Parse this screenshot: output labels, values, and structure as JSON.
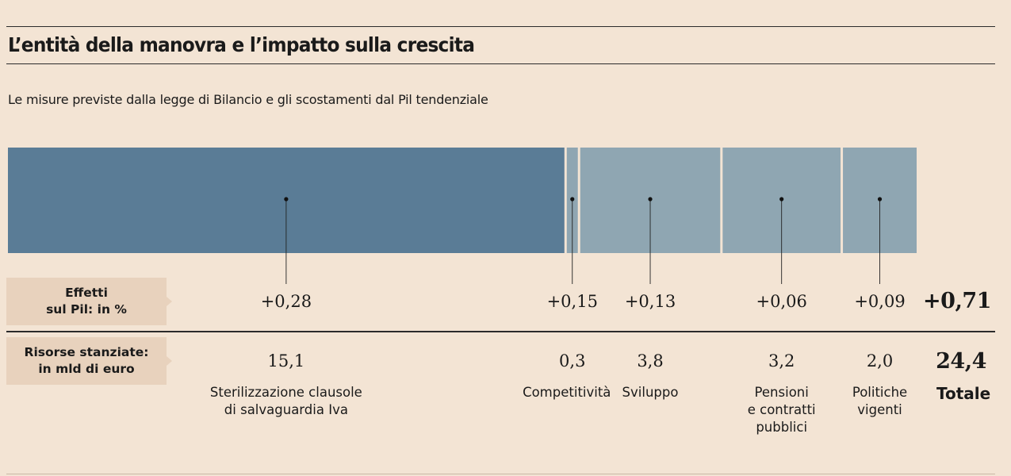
{
  "title": "L’entità della manovra e l’impatto sulla crescita",
  "subtitle": "Le misure previste dalla legge di Bilancio e gli scostamenti dal Pil tendenziale",
  "row_labels": {
    "effects": [
      "Effetti",
      "sul Pil: in %"
    ],
    "resources": [
      "Risorse stanziate:",
      "in mld di euro"
    ]
  },
  "colors": {
    "background": "#f3e4d4",
    "primary_segment": "#5a7c96",
    "secondary_segment": "#8fa6b2",
    "label_box": "#e8d2bd",
    "rule": "#2b2b2b"
  },
  "chart_data": {
    "type": "bar",
    "layout": "stacked-horizontal",
    "title": "L’entità della manovra e l’impatto sulla crescita",
    "unit_resources": "mld di euro",
    "unit_effects": "% Pil",
    "categories": [
      [
        "Sterilizzazione clausole",
        "di salvaguardia Iva"
      ],
      [
        "Competitività"
      ],
      [
        "Sviluppo"
      ],
      [
        "Pensioni",
        "e contratti",
        "pubblici"
      ],
      [
        "Politiche",
        "vigenti"
      ]
    ],
    "resources": [
      15.1,
      0.3,
      3.8,
      3.2,
      2.0
    ],
    "resources_labels": [
      "15,1",
      "0,3",
      "3,8",
      "3,2",
      "2,0"
    ],
    "effects": [
      0.28,
      0.15,
      0.13,
      0.06,
      0.09
    ],
    "effects_labels": [
      "+0,28",
      "+0,15",
      "+0,13",
      "+0,06",
      "+0,09"
    ],
    "total": {
      "label": "Totale",
      "resources": 24.4,
      "resources_label": "24,4",
      "effects": 0.71,
      "effects_label": "+0,71"
    }
  }
}
